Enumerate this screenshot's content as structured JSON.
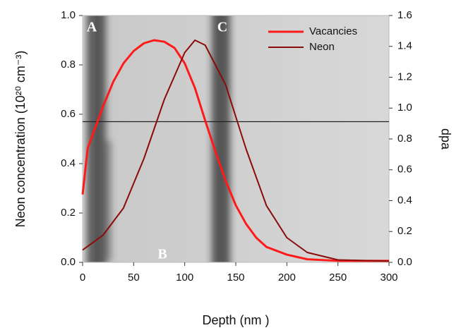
{
  "chart_data": {
    "type": "line",
    "xlabel": "Depth (nm )",
    "ylabel": "Neon concentration (10²⁰ cm⁻³)",
    "y2label": "dpa",
    "xlim": [
      0,
      300
    ],
    "xticks": [
      0,
      50,
      100,
      150,
      200,
      250,
      300
    ],
    "ylim": [
      0,
      1.0
    ],
    "yticks": [
      {
        "value": 0,
        "label": "0.0"
      },
      0.2,
      0.4,
      0.6,
      0.8,
      {
        "value": 1,
        "label": "1.0"
      }
    ],
    "y2lim": [
      0,
      1.6
    ],
    "y2ticks": [
      {
        "value": 0,
        "label": "0.0"
      },
      0.2,
      0.4,
      0.6,
      0.8,
      {
        "value": 1,
        "label": "1.0"
      },
      1.2,
      1.4,
      1.6
    ],
    "reference_line": 0.57,
    "annotations": [
      "A",
      "B",
      "C"
    ],
    "legend": "upper right",
    "series": [
      {
        "name": "Vacancies",
        "color": "#ff1a1a",
        "axis": "y2",
        "x": [
          0,
          5,
          10,
          20,
          30,
          40,
          50,
          60,
          70,
          80,
          90,
          100,
          110,
          120,
          130,
          140,
          150,
          160,
          170,
          180,
          200,
          220,
          250,
          300
        ],
        "values": [
          0.44,
          0.74,
          0.83,
          1.01,
          1.17,
          1.29,
          1.37,
          1.42,
          1.44,
          1.43,
          1.39,
          1.29,
          1.13,
          0.92,
          0.72,
          0.53,
          0.37,
          0.25,
          0.16,
          0.1,
          0.05,
          0.02,
          0.01,
          0.01
        ]
      },
      {
        "name": "Neon",
        "color": "#8b0a0a",
        "x": [
          0,
          20,
          40,
          60,
          80,
          100,
          110,
          120,
          140,
          160,
          180,
          200,
          220,
          250,
          300
        ],
        "values": [
          0.05,
          0.11,
          0.22,
          0.42,
          0.66,
          0.85,
          0.9,
          0.88,
          0.72,
          0.46,
          0.23,
          0.1,
          0.04,
          0.01,
          0.005
        ]
      }
    ]
  }
}
